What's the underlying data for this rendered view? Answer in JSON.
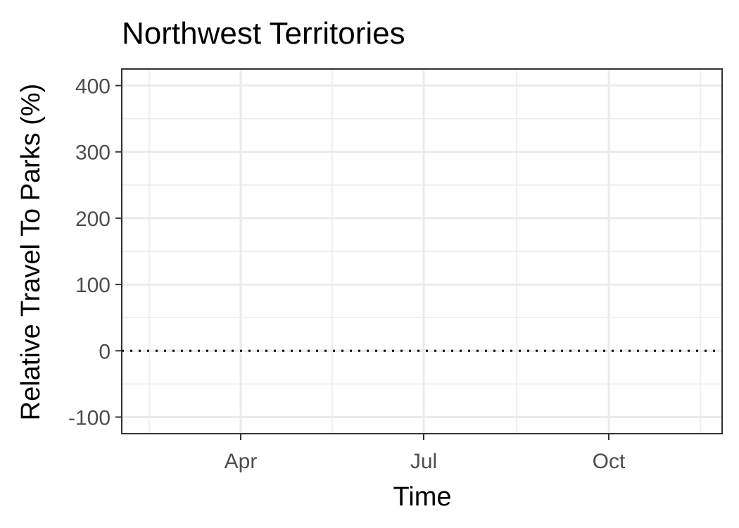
{
  "chart_data": {
    "type": "line",
    "title": "Northwest Territories",
    "xlabel": "Time",
    "ylabel": "Relative Travel To Parks (%)",
    "x_ticks": [
      "Apr",
      "Jul",
      "Oct"
    ],
    "y_ticks": [
      -100,
      0,
      100,
      200,
      300,
      400
    ],
    "ylim": [
      -125,
      425
    ],
    "reference_line": {
      "y": 0,
      "style": "dotted"
    },
    "series": [],
    "grid": true,
    "legend": "none",
    "colors": {
      "panel_border": "#333333",
      "grid": "#ebebeb",
      "reference_line": "#000000"
    }
  }
}
